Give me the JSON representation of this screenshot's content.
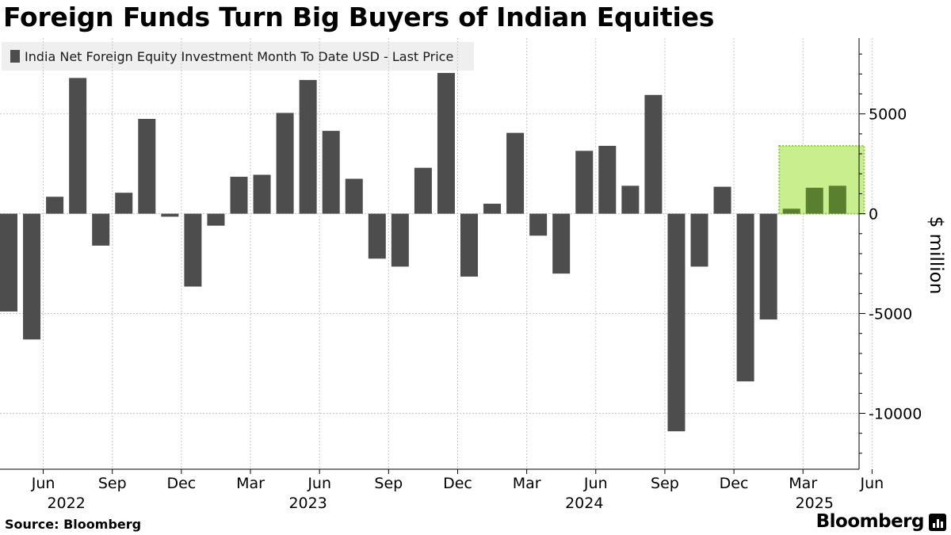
{
  "title": "Foreign Funds Turn Big Buyers of Indian Equities",
  "source": "Source: Bloomberg",
  "brand": "Bloomberg",
  "chart_data": {
    "type": "bar",
    "legend": "India Net Foreign Equity Investment Month To Date USD - Last Price",
    "ylabel": "$ million",
    "ylim": [
      -12800,
      8800
    ],
    "y_ticks": [
      5000,
      0,
      -5000,
      -10000
    ],
    "y_tick_labels": [
      "5000",
      "0",
      "-5000",
      "-10000"
    ],
    "grid": true,
    "x_month_ticks": [
      {
        "label": "Jun",
        "index": 1
      },
      {
        "label": "Sep",
        "index": 4
      },
      {
        "label": "Dec",
        "index": 7
      },
      {
        "label": "Mar",
        "index": 10
      },
      {
        "label": "Jun",
        "index": 13
      },
      {
        "label": "Sep",
        "index": 16
      },
      {
        "label": "Dec",
        "index": 19
      },
      {
        "label": "Mar",
        "index": 22
      },
      {
        "label": "Jun",
        "index": 25
      },
      {
        "label": "Sep",
        "index": 28
      },
      {
        "label": "Dec",
        "index": 31
      },
      {
        "label": "Mar",
        "index": 34
      },
      {
        "label": "Jun",
        "index": 37
      }
    ],
    "x_year_labels": [
      {
        "label": "2022",
        "index": 2.5
      },
      {
        "label": "2023",
        "index": 13
      },
      {
        "label": "2024",
        "index": 25
      },
      {
        "label": "2025",
        "index": 35
      }
    ],
    "categories": [
      "May 2022",
      "Jun 2022",
      "Jul 2022",
      "Aug 2022",
      "Sep 2022",
      "Oct 2022",
      "Nov 2022",
      "Dec 2022",
      "Jan 2023",
      "Feb 2023",
      "Mar 2023",
      "Apr 2023",
      "May 2023",
      "Jun 2023",
      "Jul 2023",
      "Aug 2023",
      "Sep 2023",
      "Oct 2023",
      "Nov 2023",
      "Dec 2023",
      "Jan 2024",
      "Feb 2024",
      "Mar 2024",
      "Apr 2024",
      "May 2024",
      "Jun 2024",
      "Jul 2024",
      "Aug 2024",
      "Sep 2024",
      "Oct 2024",
      "Nov 2024",
      "Dec 2024",
      "Jan 2025",
      "Feb 2025",
      "Mar 2025",
      "Apr 2025",
      "May 2025"
    ],
    "values": [
      -4900,
      -6300,
      850,
      6800,
      -1600,
      1050,
      4750,
      -150,
      -3650,
      -600,
      1850,
      1950,
      5050,
      6700,
      4150,
      1750,
      -2250,
      -2650,
      2300,
      7050,
      -3150,
      500,
      4050,
      -1100,
      -3000,
      3150,
      3400,
      1400,
      5950,
      -10900,
      -2650,
      1350,
      -8400,
      -5300,
      250,
      1300,
      1400
    ],
    "highlight": {
      "from_index": 34,
      "to_index": 37,
      "top_value": 3400,
      "bottom_value": 0,
      "fill": "#c8ee8e",
      "border": "#8ccd3c",
      "bar_color": "#5a7f2f"
    },
    "bar_color": "#4d4d4d"
  }
}
